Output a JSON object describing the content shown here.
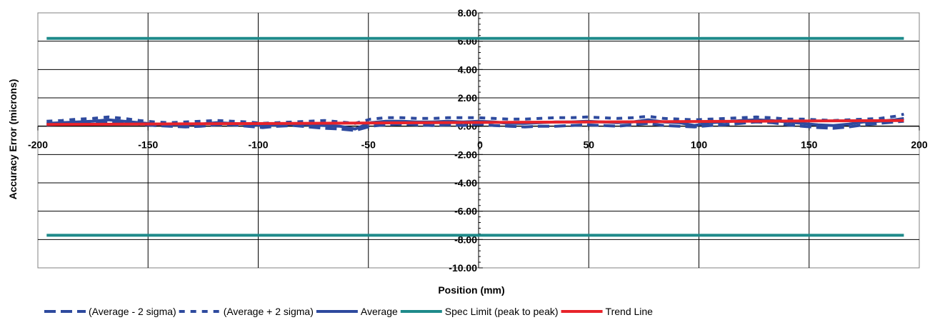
{
  "chart_data": {
    "type": "line",
    "title": "",
    "xlabel": "Position (mm)",
    "ylabel": "Accuracy Error (microns)",
    "xlim": [
      -200,
      200
    ],
    "ylim": [
      -10,
      8
    ],
    "x_ticks": [
      -200,
      -150,
      -100,
      -50,
      0,
      50,
      100,
      150,
      200
    ],
    "x_tick_labels": [
      "-200",
      "-150",
      "-100",
      "-50",
      "0",
      "50",
      "100",
      "150",
      "200"
    ],
    "y_ticks": [
      -10,
      -8,
      -6,
      -4,
      -2,
      0,
      2,
      4,
      6,
      8
    ],
    "y_tick_labels": [
      "-10.00",
      "-8.00",
      "-6.00",
      "-4.00",
      "-2.00",
      "0.00",
      "2.00",
      "4.00",
      "6.00",
      "8.00"
    ],
    "grid": true,
    "legend_position": "bottom",
    "series": [
      {
        "name": "(Average - 2 sigma)",
        "color": "#2e4a9e",
        "dash": "long-dash",
        "x": [
          -196,
          -189,
          -182,
          -175,
          -168,
          -161,
          -154,
          -147,
          -140,
          -133,
          -126,
          -119,
          -112,
          -105,
          -98,
          -91,
          -84,
          -77,
          -70,
          -63,
          -56,
          -49,
          -42,
          -35,
          -28,
          -21,
          -14,
          -7,
          0,
          7,
          14,
          21,
          28,
          35,
          42,
          49,
          56,
          63,
          70,
          77,
          84,
          91,
          98,
          105,
          112,
          119,
          126,
          133,
          140,
          147,
          154,
          161,
          168,
          175,
          182,
          189,
          193
        ],
        "values": [
          0.1,
          0.15,
          0.2,
          0.25,
          0.3,
          0.25,
          0.15,
          0.05,
          0.0,
          -0.05,
          0.0,
          0.1,
          0.1,
          0.0,
          -0.1,
          0.0,
          0.05,
          -0.05,
          -0.15,
          -0.2,
          -0.3,
          0.0,
          0.1,
          0.15,
          0.1,
          0.05,
          0.1,
          0.05,
          0.15,
          0.05,
          0.0,
          -0.05,
          0.0,
          0.0,
          0.05,
          0.1,
          0.05,
          0.0,
          0.1,
          0.2,
          0.05,
          0.0,
          -0.05,
          0.05,
          0.1,
          0.2,
          0.3,
          0.25,
          0.1,
          0.0,
          -0.1,
          -0.15,
          -0.05,
          0.1,
          0.2,
          0.3,
          0.35
        ]
      },
      {
        "name": "(Average + 2 sigma)",
        "color": "#2e4a9e",
        "dash": "short-dash",
        "x": [
          -196,
          -189,
          -182,
          -175,
          -168,
          -161,
          -154,
          -147,
          -140,
          -133,
          -126,
          -119,
          -112,
          -105,
          -98,
          -91,
          -84,
          -77,
          -70,
          -63,
          -56,
          -49,
          -42,
          -35,
          -28,
          -21,
          -14,
          -7,
          0,
          7,
          14,
          21,
          28,
          35,
          42,
          49,
          56,
          63,
          70,
          77,
          84,
          91,
          98,
          105,
          112,
          119,
          126,
          133,
          140,
          147,
          154,
          161,
          168,
          175,
          182,
          189,
          193
        ],
        "values": [
          0.35,
          0.4,
          0.5,
          0.55,
          0.65,
          0.55,
          0.4,
          0.3,
          0.25,
          0.3,
          0.35,
          0.4,
          0.35,
          0.3,
          0.2,
          0.25,
          0.3,
          0.35,
          0.4,
          0.3,
          0.2,
          0.5,
          0.6,
          0.6,
          0.55,
          0.55,
          0.6,
          0.6,
          0.6,
          0.55,
          0.5,
          0.5,
          0.55,
          0.6,
          0.6,
          0.65,
          0.6,
          0.55,
          0.6,
          0.7,
          0.55,
          0.5,
          0.45,
          0.5,
          0.55,
          0.6,
          0.65,
          0.6,
          0.5,
          0.5,
          0.45,
          0.4,
          0.45,
          0.5,
          0.55,
          0.7,
          0.85
        ]
      },
      {
        "name": "Average",
        "color": "#2e4a9e",
        "dash": "solid",
        "x": [
          -196,
          -189,
          -182,
          -175,
          -168,
          -161,
          -154,
          -147,
          -140,
          -133,
          -126,
          -119,
          -112,
          -105,
          -98,
          -91,
          -84,
          -77,
          -70,
          -63,
          -56,
          -49,
          -42,
          -35,
          -28,
          -21,
          -14,
          -7,
          0,
          7,
          14,
          21,
          28,
          35,
          42,
          49,
          56,
          63,
          70,
          77,
          84,
          91,
          98,
          105,
          112,
          119,
          126,
          133,
          140,
          147,
          154,
          161,
          168,
          175,
          182,
          189,
          193
        ],
        "values": [
          0.2,
          0.25,
          0.3,
          0.35,
          0.45,
          0.35,
          0.25,
          0.15,
          0.1,
          0.1,
          0.15,
          0.25,
          0.2,
          0.15,
          0.05,
          0.1,
          0.15,
          0.1,
          0.05,
          0.0,
          -0.2,
          0.25,
          0.35,
          0.35,
          0.3,
          0.3,
          0.35,
          0.3,
          0.35,
          0.3,
          0.2,
          0.2,
          0.25,
          0.3,
          0.3,
          0.35,
          0.3,
          0.25,
          0.3,
          0.45,
          0.3,
          0.25,
          0.05,
          0.25,
          0.3,
          0.4,
          0.45,
          0.4,
          0.3,
          0.2,
          0.1,
          0.05,
          0.15,
          0.3,
          0.35,
          0.45,
          0.55
        ]
      },
      {
        "name": "Spec Limit (peak to peak)",
        "color": "#1e8a8a",
        "dash": "solid",
        "x": [
          -196,
          193
        ],
        "values": [
          6.2,
          6.2
        ]
      },
      {
        "name": "Spec Limit (peak to peak)",
        "color": "#1e8a8a",
        "dash": "solid",
        "legend": false,
        "x": [
          -196,
          193
        ],
        "values": [
          -7.7,
          -7.7
        ]
      },
      {
        "name": "Trend Line",
        "color": "#e8232a",
        "dash": "solid",
        "x": [
          -196,
          193
        ],
        "values": [
          0.12,
          0.4
        ]
      }
    ]
  }
}
